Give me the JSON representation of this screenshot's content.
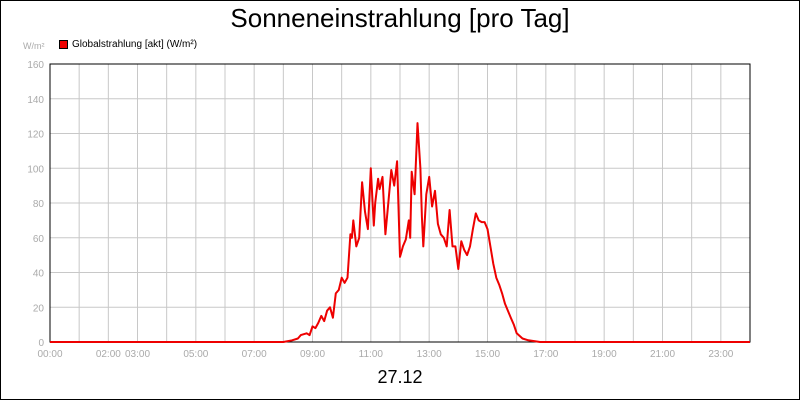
{
  "chart_data": {
    "type": "line",
    "title": "Sonneneinstrahlung [pro Tag]",
    "y_unit": "W/m²",
    "legend": [
      {
        "label": "Globalstrahlung [akt] (W/m²)",
        "color": "#ee0000"
      }
    ],
    "date_label": "27.12",
    "x_tick_labels": [
      "00:00",
      "02:00",
      "03:00",
      "05:00",
      "07:00",
      "09:00",
      "11:00",
      "13:00",
      "15:00",
      "17:00",
      "19:00",
      "21:00",
      "23:00"
    ],
    "x_tick_hours": [
      0,
      2,
      3,
      5,
      7,
      9,
      11,
      13,
      15,
      17,
      19,
      21,
      23
    ],
    "x_range_hours": [
      0,
      24
    ],
    "y_ticks": [
      0,
      20,
      40,
      60,
      80,
      100,
      120,
      140,
      160
    ],
    "ylim": [
      0,
      160
    ],
    "grid": true,
    "legend_position": "top-left",
    "series": [
      {
        "name": "Globalstrahlung [akt] (W/m²)",
        "color": "#ee0000",
        "x_hours": [
          0,
          8.0,
          8.3,
          8.5,
          8.6,
          8.8,
          8.9,
          9.0,
          9.1,
          9.2,
          9.3,
          9.4,
          9.5,
          9.6,
          9.7,
          9.8,
          9.9,
          10.0,
          10.1,
          10.2,
          10.3,
          10.35,
          10.4,
          10.5,
          10.6,
          10.7,
          10.8,
          10.9,
          11.0,
          11.1,
          11.15,
          11.25,
          11.3,
          11.4,
          11.5,
          11.6,
          11.7,
          11.8,
          11.9,
          12.0,
          12.05,
          12.1,
          12.2,
          12.3,
          12.35,
          12.4,
          12.5,
          12.6,
          12.7,
          12.75,
          12.8,
          12.9,
          13.0,
          13.1,
          13.2,
          13.3,
          13.4,
          13.5,
          13.6,
          13.7,
          13.8,
          13.9,
          14.0,
          14.1,
          14.2,
          14.3,
          14.4,
          14.5,
          14.6,
          14.7,
          14.8,
          14.9,
          15.0,
          15.1,
          15.2,
          15.3,
          15.4,
          15.5,
          15.6,
          15.7,
          15.8,
          15.9,
          16.0,
          16.2,
          16.4,
          16.6,
          16.8,
          17.0,
          17.2,
          24
        ],
        "values": [
          0,
          0,
          1,
          2,
          4,
          5,
          4,
          9,
          8,
          11,
          15,
          12,
          18,
          20,
          14,
          28,
          30,
          37,
          34,
          37,
          62,
          60,
          70,
          55,
          60,
          92,
          75,
          65,
          100,
          67,
          80,
          94,
          88,
          95,
          62,
          80,
          99,
          90,
          104,
          49,
          52,
          55,
          59,
          70,
          60,
          98,
          85,
          126,
          100,
          72,
          55,
          85,
          95,
          78,
          87,
          68,
          62,
          60,
          55,
          76,
          55,
          55,
          42,
          58,
          53,
          50,
          55,
          65,
          74,
          70,
          69,
          69,
          65,
          55,
          45,
          37,
          33,
          28,
          22,
          18,
          14,
          10,
          5,
          2,
          1,
          0.5,
          0,
          0,
          0,
          0
        ]
      }
    ]
  }
}
